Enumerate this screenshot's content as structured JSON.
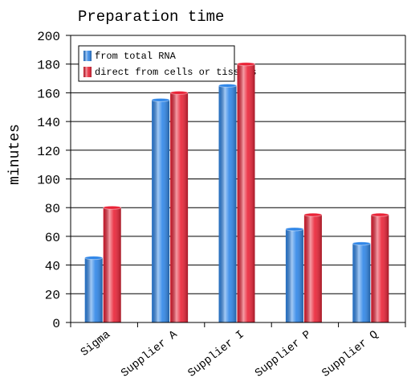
{
  "chart_data": {
    "type": "bar",
    "title": "Preparation time",
    "y_label": "minutes",
    "categories": [
      "Sigma",
      "Supplier A",
      "Supplier I",
      "Supplier P",
      "Supplier Q"
    ],
    "series": [
      {
        "name": "from total RNA",
        "color": "#2f86e8",
        "values": [
          45,
          155,
          165,
          65,
          55
        ]
      },
      {
        "name": "direct from cells or tissues",
        "color": "#ea2236",
        "values": [
          80,
          160,
          180,
          75,
          75
        ]
      }
    ],
    "ylim": [
      0,
      200
    ],
    "yticks": [
      0,
      20,
      40,
      60,
      80,
      100,
      120,
      140,
      160,
      180,
      200
    ],
    "grid": true,
    "legend": "top-left"
  }
}
